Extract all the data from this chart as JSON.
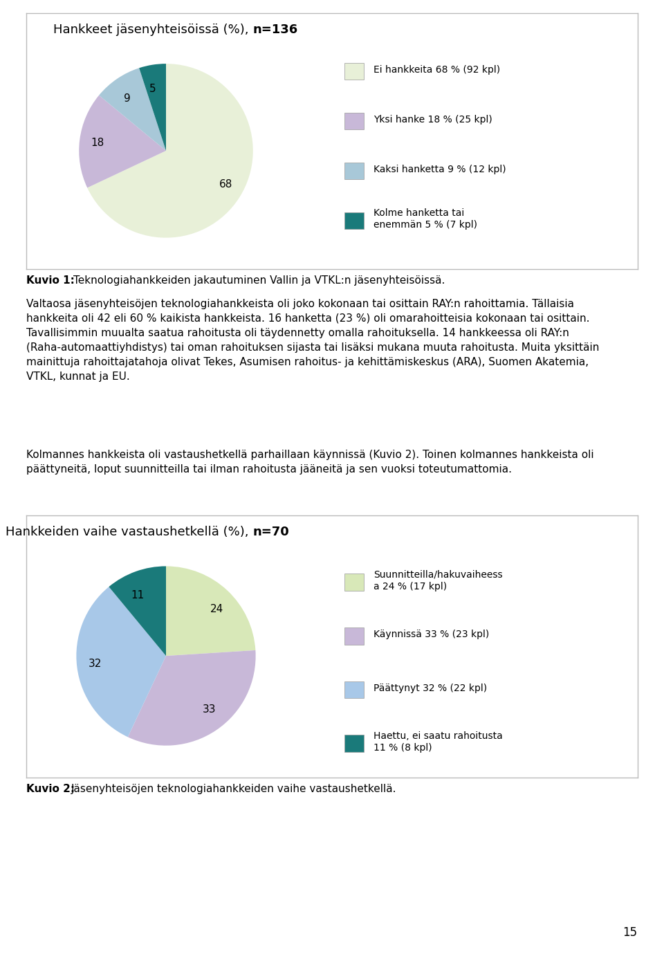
{
  "page_bg": "#ffffff",
  "chart1": {
    "title_normal": "Hankkeet jäsenyhteisöissä (%), ",
    "title_bold": "n=136",
    "slices": [
      68,
      18,
      9,
      5
    ],
    "labels": [
      "68",
      "18",
      "9",
      "5"
    ],
    "colors": [
      "#e8f0d8",
      "#c8b8d8",
      "#a8c8d8",
      "#1a7a7a"
    ],
    "legend_labels": [
      "Ei hankkeita 68 % (92 kpl)",
      "Yksi hanke 18 % (25 kpl)",
      "Kaksi hanketta 9 % (12 kpl)",
      "Kolme hanketta tai\nenemmän 5 % (7 kpl)"
    ],
    "legend_colors": [
      "#e8f0d8",
      "#c8b8d8",
      "#a8c8d8",
      "#1a7a7a"
    ],
    "startangle": 90
  },
  "caption1_bold": "Kuvio 1: ",
  "caption1_normal": "Teknologiahankkeiden jakautuminen Vallin ja VTKL:n jäsenyhteisöissä.",
  "body_text": "Valtaosa jäsenyhteisöjen teknologiahankkeista oli joko kokonaan tai osittain RAY:n rahoittamia. Tällaisia\nhankkeita oli 42 eli 60 % kaikista hankkeista. 16 hanketta (23 %) oli omarahoitteisia kokonaan tai osittain.\nTavallisimmin muualta saatua rahoitusta oli täydennetty omalla rahoituksella. 14 hankkeessa oli RAY:n\n(Raha-automaattiyhdistys) tai oman rahoituksen sijasta tai lisäksi mukana muuta rahoitusta. Muita yksittäin\nmainittuja rahoittajatahoja olivat Tekes, Asumisen rahoitus- ja kehittämiskeskus (ARA), Suomen Akatemia,\nVTKL, kunnat ja EU.",
  "body_text2": "Kolmannes hankkeista oli vastaushetkellä parhaillaan käynnissä (Kuvio 2). Toinen kolmannes hankkeista oli\npäättyneitä, loput suunnitteilla tai ilman rahoitusta jääneitä ja sen vuoksi toteutumattomia.",
  "chart2": {
    "title_normal": "Hankkeiden vaihe vastaushetkellä (%), ",
    "title_bold": "n=70",
    "slices": [
      24,
      33,
      32,
      11
    ],
    "labels": [
      "24",
      "33",
      "32",
      "11"
    ],
    "colors": [
      "#d8e8b8",
      "#c8b8d8",
      "#a8c8e8",
      "#1a7a7a"
    ],
    "legend_labels": [
      "Suunnitteilla/hakuvaiheess\na 24 % (17 kpl)",
      "Käynnissä 33 % (23 kpl)",
      "Päättynyt 32 % (22 kpl)",
      "Haettu, ei saatu rahoitusta\n11 % (8 kpl)"
    ],
    "legend_colors": [
      "#d8e8b8",
      "#c8b8d8",
      "#a8c8e8",
      "#1a7a7a"
    ],
    "startangle": 90
  },
  "caption2_bold": "Kuvio 2: ",
  "caption2_normal": "Jäsenyhteisöjen teknologiahankkeiden vaihe vastaushetkellä.",
  "page_number": "15",
  "font_size_body": 11,
  "font_size_title": 13,
  "font_size_legend": 10,
  "font_size_caption": 11,
  "font_size_page": 12
}
